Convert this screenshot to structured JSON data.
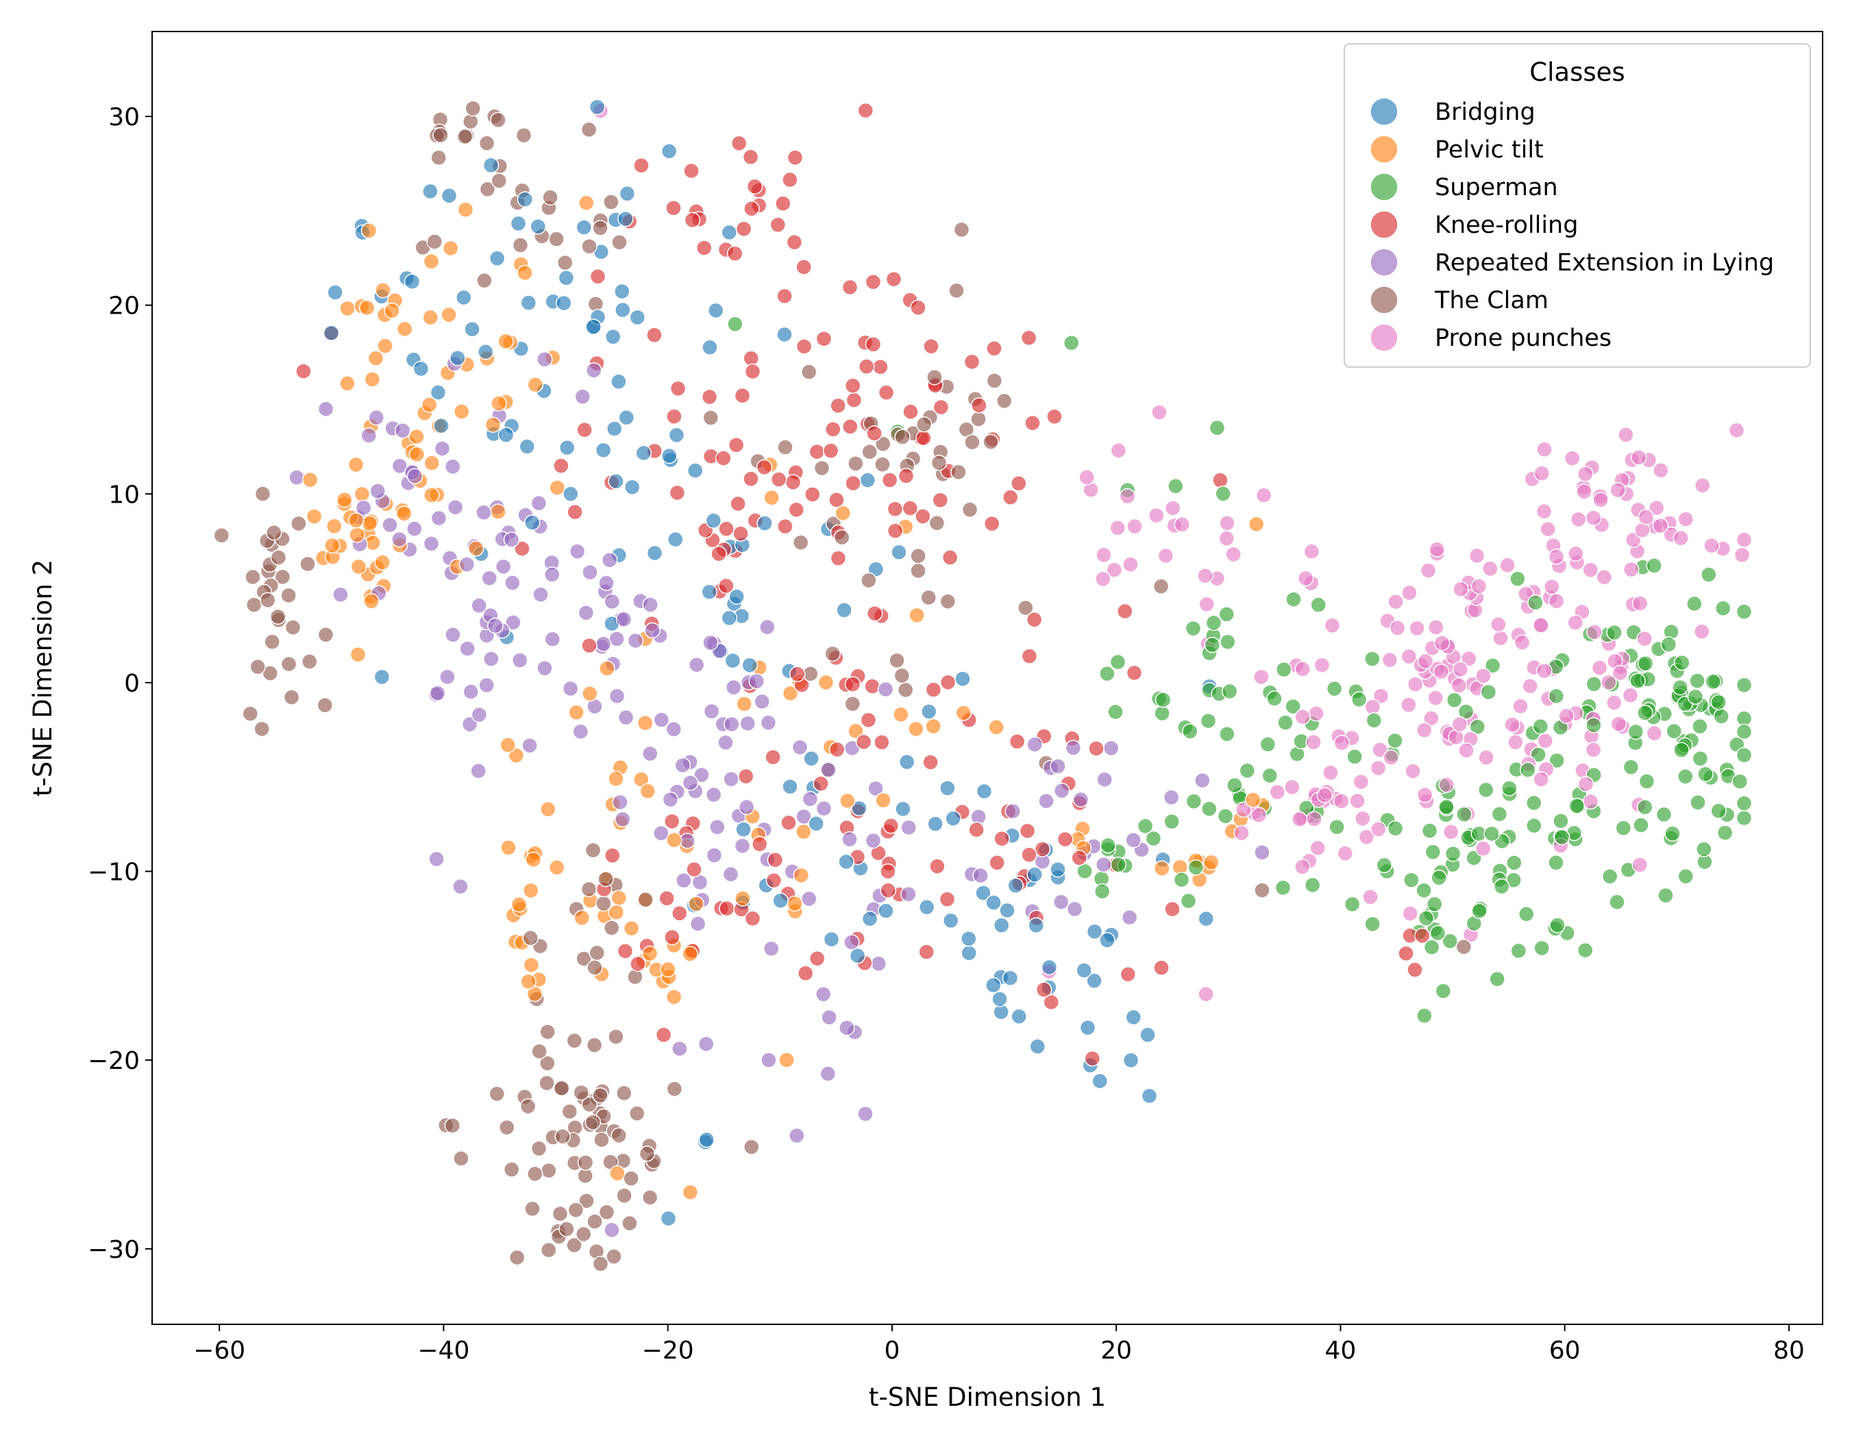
{
  "chart_data": {
    "type": "scatter",
    "title": "",
    "xlabel": "t-SNE Dimension 1",
    "ylabel": "t-SNE Dimension 2",
    "xlim": [
      -66,
      83
    ],
    "ylim": [
      -34,
      34.5
    ],
    "xticks": [
      -60,
      -40,
      -20,
      0,
      20,
      40,
      60,
      80
    ],
    "yticks": [
      -30,
      -20,
      -10,
      0,
      10,
      20,
      30
    ],
    "xtick_labels": [
      "−60",
      "−40",
      "−20",
      "0",
      "20",
      "40",
      "60",
      "80"
    ],
    "ytick_labels": [
      "−30",
      "−20",
      "−10",
      "0",
      "10",
      "20",
      "30"
    ],
    "grid": false,
    "legend": {
      "title": "Classes",
      "position": "top-right"
    },
    "series": [
      {
        "name": "Bridging",
        "color": "#1f77b4",
        "n": 150,
        "seed": 11,
        "clusters": [
          {
            "cx": -32,
            "cy": 18,
            "sx": 8,
            "sy": 5,
            "w": 40
          },
          {
            "cx": -12,
            "cy": 5,
            "sx": 6,
            "sy": 3,
            "w": 20
          },
          {
            "cx": 0,
            "cy": -8,
            "sx": 8,
            "sy": 4,
            "w": 30
          },
          {
            "cx": 14,
            "cy": -15,
            "sx": 6,
            "sy": 3,
            "w": 25
          },
          {
            "cx": -25,
            "cy": 15,
            "sx": 5,
            "sy": 4,
            "w": 15
          },
          {
            "cx": 18,
            "cy": -18,
            "sx": 3,
            "sy": 2,
            "w": 10
          },
          {
            "cx": -18,
            "cy": -27,
            "sx": 2,
            "sy": 2,
            "w": 5
          },
          {
            "cx": -45,
            "cy": 22,
            "sx": 3,
            "sy": 2,
            "w": 5
          }
        ],
        "points": [
          [
            -26.3,
            30.5
          ],
          [
            -39.5,
            25.8
          ],
          [
            -47.3,
            24.2
          ],
          [
            6.3,
            0.2
          ],
          [
            28.3,
            -0.2
          ],
          [
            -45.5,
            0.3
          ]
        ]
      },
      {
        "name": "Pelvic tilt",
        "color": "#ff7f0e",
        "n": 170,
        "seed": 23,
        "clusters": [
          {
            "cx": -40,
            "cy": 15,
            "sx": 5,
            "sy": 5,
            "w": 50
          },
          {
            "cx": -48,
            "cy": 7.5,
            "sx": 3,
            "sy": 1.5,
            "w": 25
          },
          {
            "cx": -25,
            "cy": -8,
            "sx": 4,
            "sy": 5,
            "w": 30
          },
          {
            "cx": -10,
            "cy": -3,
            "sx": 8,
            "sy": 6,
            "w": 35
          },
          {
            "cx": -33,
            "cy": -12,
            "sx": 1,
            "sy": 3,
            "w": 12
          },
          {
            "cx": 25,
            "cy": -9,
            "sx": 6,
            "sy": 2,
            "w": 10
          },
          {
            "cx": -20,
            "cy": -15,
            "sx": 2,
            "sy": 1,
            "w": 8
          }
        ],
        "points": [
          [
            32.5,
            8.4
          ],
          [
            -18,
            -27
          ],
          [
            -24.5,
            -26
          ]
        ]
      },
      {
        "name": "Superman",
        "color": "#2ca02c",
        "n": 250,
        "seed": 37,
        "clusters": [
          {
            "cx": 60,
            "cy": -6,
            "sx": 10,
            "sy": 5,
            "w": 110
          },
          {
            "cx": 70,
            "cy": -1,
            "sx": 4,
            "sy": 3,
            "w": 50
          },
          {
            "cx": 30,
            "cy": -2,
            "sx": 4,
            "sy": 4,
            "w": 40
          },
          {
            "cx": 48,
            "cy": -9,
            "sx": 6,
            "sy": 3,
            "w": 40
          },
          {
            "cx": 22,
            "cy": -10,
            "sx": 3,
            "sy": 1.5,
            "w": 10
          }
        ],
        "points": [
          [
            29,
            13.5
          ],
          [
            16,
            18
          ],
          [
            -14,
            19
          ],
          [
            21,
            10.2
          ],
          [
            0.5,
            13.3
          ],
          [
            55.8,
            5.5
          ]
        ]
      },
      {
        "name": "Knee-rolling",
        "color": "#d62728",
        "n": 210,
        "seed": 41,
        "clusters": [
          {
            "cx": -15,
            "cy": 25,
            "sx": 5,
            "sy": 3,
            "w": 30
          },
          {
            "cx": 0,
            "cy": 15,
            "sx": 10,
            "sy": 6,
            "w": 50
          },
          {
            "cx": -10,
            "cy": 10,
            "sx": 10,
            "sy": 5,
            "w": 40
          },
          {
            "cx": 5,
            "cy": -8,
            "sx": 10,
            "sy": 5,
            "w": 50
          },
          {
            "cx": -15,
            "cy": -10,
            "sx": 6,
            "sy": 4,
            "w": 25
          },
          {
            "cx": 45,
            "cy": -14,
            "sx": 1.5,
            "sy": 0.6,
            "w": 6
          }
        ],
        "points": [
          [
            -52.5,
            16.5
          ],
          [
            -50,
            18.5
          ],
          [
            -33,
            7.1
          ],
          [
            25,
            -12
          ]
        ]
      },
      {
        "name": "Repeated Extension in Lying",
        "color": "#9467bd",
        "n": 190,
        "seed": 53,
        "clusters": [
          {
            "cx": -37,
            "cy": 5,
            "sx": 4,
            "sy": 5,
            "w": 50
          },
          {
            "cx": -17,
            "cy": -4,
            "sx": 4,
            "sy": 4,
            "w": 40
          },
          {
            "cx": -8,
            "cy": -12,
            "sx": 6,
            "sy": 5,
            "w": 30
          },
          {
            "cx": 17,
            "cy": -8,
            "sx": 5,
            "sy": 3,
            "w": 30
          },
          {
            "cx": -45,
            "cy": 10,
            "sx": 3,
            "sy": 2,
            "w": 15
          },
          {
            "cx": -22,
            "cy": 3,
            "sx": 5,
            "sy": 2,
            "w": 25
          }
        ],
        "points": [
          [
            -38.5,
            -10.8
          ],
          [
            -8.5,
            -24
          ],
          [
            -11,
            -20
          ],
          [
            -25,
            -29
          ],
          [
            -50.5,
            14.5
          ],
          [
            33,
            -9
          ]
        ]
      },
      {
        "name": "The Clam",
        "color": "#8c564b",
        "n": 200,
        "seed": 67,
        "clusters": [
          {
            "cx": -29,
            "cy": -24,
            "sx": 4,
            "sy": 3,
            "w": 55
          },
          {
            "cx": -55,
            "cy": 3,
            "sx": 1.8,
            "sy": 2.5,
            "w": 25
          },
          {
            "cx": -38,
            "cy": 30,
            "sx": 2,
            "sy": 1,
            "w": 12
          },
          {
            "cx": -30,
            "cy": 25,
            "sx": 5,
            "sy": 3,
            "w": 25
          },
          {
            "cx": 0,
            "cy": 15,
            "sx": 6,
            "sy": 3,
            "w": 30
          },
          {
            "cx": 0,
            "cy": 5,
            "sx": 5,
            "sy": 5,
            "w": 30
          },
          {
            "cx": -27,
            "cy": -12,
            "sx": 2,
            "sy": 2,
            "w": 10
          },
          {
            "cx": -26,
            "cy": -29,
            "sx": 2,
            "sy": 1.5,
            "w": 13
          }
        ],
        "points": [
          [
            -59.8,
            7.8
          ],
          [
            6.2,
            24
          ],
          [
            24,
            5.1
          ],
          [
            51,
            -14
          ],
          [
            33,
            -11
          ],
          [
            -26,
            -30.8
          ]
        ]
      },
      {
        "name": "Prone punches",
        "color": "#e377c2",
        "n": 240,
        "seed": 79,
        "clusters": [
          {
            "cx": 52,
            "cy": -1,
            "sx": 9,
            "sy": 4,
            "w": 120
          },
          {
            "cx": 65,
            "cy": 8,
            "sx": 4,
            "sy": 3,
            "w": 45
          },
          {
            "cx": 25,
            "cy": 6,
            "sx": 6,
            "sy": 3,
            "w": 30
          },
          {
            "cx": 38,
            "cy": -7,
            "sx": 6,
            "sy": 2,
            "w": 30
          },
          {
            "cx": 48,
            "cy": 5,
            "sx": 5,
            "sy": 2,
            "w": 15
          }
        ],
        "points": [
          [
            66,
            11.8
          ],
          [
            67.5,
            11.8
          ],
          [
            20.2,
            12.3
          ],
          [
            28,
            -16.5
          ],
          [
            -26,
            30.3
          ],
          [
            14,
            -15.3
          ]
        ]
      }
    ]
  }
}
